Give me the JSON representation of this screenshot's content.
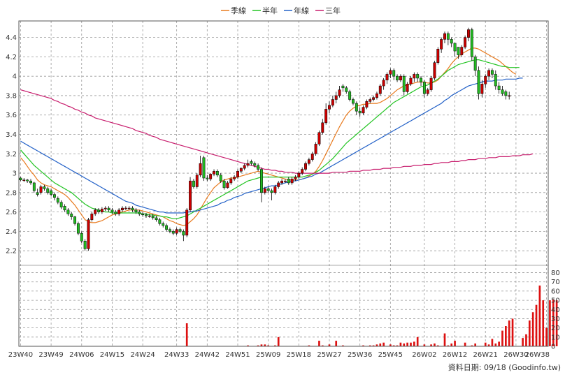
{
  "chart_data": {
    "type": "candlestick",
    "legend": [
      {
        "name": "季線",
        "color": "#e87a1e"
      },
      {
        "name": "半年",
        "color": "#22c422"
      },
      {
        "name": "年線",
        "color": "#2462c8"
      },
      {
        "name": "三年",
        "color": "#c81e6e"
      }
    ],
    "legend_position": "top-center",
    "grid": true,
    "colors": {
      "up": "#cc0000",
      "down": "#22bb22",
      "volume": "#dd1111",
      "grid": "#999999",
      "frame": "#555555"
    },
    "x_ticks": [
      "23W40",
      "23W49",
      "24W06",
      "24W15",
      "24W24",
      "24W33",
      "24W42",
      "24W51",
      "25W09",
      "25W18",
      "25W27",
      "25W36",
      "25W45",
      "26W02",
      "26W12",
      "26W21",
      "26W30",
      "26W38"
    ],
    "price_axis": {
      "ticks": [
        2.2,
        2.4,
        2.6,
        2.8,
        3,
        3.2,
        3.4,
        3.6,
        3.8,
        4,
        4.2,
        4.4
      ],
      "tick_labels": [
        "2.2",
        "2.4",
        "2.6",
        "2.8",
        "3",
        "3.2",
        "3.4",
        "3.6",
        "3.8",
        "4",
        "4.2",
        "4.4"
      ],
      "range": [
        2.05,
        4.57
      ]
    },
    "volume_axis": {
      "ticks": [
        0,
        10,
        20,
        30,
        40,
        50,
        60,
        70,
        80
      ],
      "tick_labels": [
        "0",
        "10",
        "20",
        "30",
        "40",
        "50",
        "60",
        "70",
        "80"
      ],
      "range": [
        0,
        88
      ]
    },
    "weeks": 156,
    "candles_close": [
      2.93,
      2.93,
      2.92,
      2.9,
      2.82,
      2.78,
      2.86,
      2.84,
      2.8,
      2.78,
      2.75,
      2.7,
      2.65,
      2.62,
      2.58,
      2.55,
      2.48,
      2.38,
      2.3,
      2.22,
      2.52,
      2.58,
      2.62,
      2.6,
      2.63,
      2.64,
      2.62,
      2.6,
      2.58,
      2.62,
      2.64,
      2.64,
      2.64,
      2.62,
      2.6,
      2.58,
      2.57,
      2.56,
      2.56,
      2.54,
      2.52,
      2.48,
      2.46,
      2.42,
      2.4,
      2.38,
      2.42,
      2.4,
      2.36,
      2.62,
      2.92,
      2.86,
      2.98,
      3.1,
      2.95,
      2.94,
      2.99,
      3.02,
      2.98,
      2.92,
      2.85,
      2.9,
      2.94,
      2.96,
      3.02,
      3.05,
      3.08,
      3.1,
      3.1,
      3.08,
      3.04,
      2.8,
      2.84,
      2.82,
      2.8,
      2.86,
      2.9,
      2.92,
      2.92,
      2.9,
      2.94,
      2.96,
      3,
      3.04,
      3.1,
      3.14,
      3.2,
      3.3,
      3.42,
      3.52,
      3.66,
      3.7,
      3.76,
      3.8,
      3.86,
      3.88,
      3.84,
      3.76,
      3.72,
      3.64,
      3.62,
      3.68,
      3.74,
      3.76,
      3.78,
      3.82,
      3.9,
      3.96,
      4.02,
      4.06,
      4,
      3.96,
      4,
      3.84,
      3.92,
      3.98,
      4.02,
      3.98,
      3.94,
      3.82,
      3.86,
      3.98,
      4.14,
      4.28,
      4.38,
      4.44,
      4.38,
      4.34,
      4.26,
      4.22,
      4.3,
      4.4,
      4.48,
      4.2,
      4.06,
      3.82,
      3.92,
      4,
      4.06,
      4.02,
      3.9,
      3.86,
      3.82,
      3.8,
      3.8
    ],
    "candles_open": [
      2.95,
      2.93,
      2.93,
      2.92,
      2.9,
      2.8,
      2.8,
      2.86,
      2.84,
      2.82,
      2.78,
      2.74,
      2.7,
      2.66,
      2.62,
      2.58,
      2.55,
      2.48,
      2.38,
      2.3,
      2.22,
      2.52,
      2.58,
      2.62,
      2.6,
      2.63,
      2.64,
      2.62,
      2.6,
      2.58,
      2.62,
      2.64,
      2.64,
      2.64,
      2.62,
      2.6,
      2.58,
      2.57,
      2.56,
      2.56,
      2.54,
      2.52,
      2.48,
      2.46,
      2.42,
      2.4,
      2.38,
      2.42,
      2.4,
      2.36,
      2.62,
      2.92,
      2.86,
      2.98,
      3.16,
      2.95,
      2.94,
      2.99,
      3.02,
      2.98,
      2.92,
      2.85,
      2.9,
      2.94,
      2.96,
      3.02,
      3.05,
      3.08,
      3.12,
      3.1,
      3.08,
      3.04,
      2.8,
      2.84,
      2.82,
      2.8,
      2.86,
      2.9,
      2.92,
      2.94,
      2.9,
      2.94,
      2.96,
      3,
      3.04,
      3.1,
      3.14,
      3.2,
      3.3,
      3.42,
      3.52,
      3.66,
      3.7,
      3.76,
      3.8,
      3.9,
      3.88,
      3.84,
      3.76,
      3.72,
      3.64,
      3.62,
      3.68,
      3.74,
      3.76,
      3.78,
      3.82,
      3.9,
      3.96,
      4.02,
      4.06,
      4,
      3.96,
      4,
      3.84,
      3.92,
      3.98,
      4.02,
      3.98,
      3.94,
      3.82,
      3.86,
      3.98,
      4.14,
      4.28,
      4.38,
      4.44,
      4.38,
      4.34,
      4.3,
      4.22,
      4.3,
      4.4,
      4.48,
      4.2,
      4.06,
      3.82,
      3.92,
      4,
      4.06,
      4.02,
      3.9,
      3.86,
      3.84,
      3.8
    ],
    "candles_high": [
      2.96,
      2.95,
      2.94,
      2.94,
      2.91,
      2.84,
      2.88,
      2.88,
      2.86,
      2.84,
      2.8,
      2.76,
      2.72,
      2.68,
      2.64,
      2.6,
      2.56,
      2.5,
      2.4,
      2.32,
      2.54,
      2.6,
      2.64,
      2.64,
      2.65,
      2.66,
      2.66,
      2.64,
      2.62,
      2.64,
      2.66,
      2.66,
      2.66,
      2.66,
      2.64,
      2.62,
      2.6,
      2.59,
      2.58,
      2.58,
      2.56,
      2.54,
      2.5,
      2.48,
      2.44,
      2.42,
      2.44,
      2.44,
      2.42,
      2.64,
      2.96,
      2.94,
      3,
      3.18,
      3.18,
      2.98,
      3,
      3.04,
      3.04,
      3,
      2.94,
      2.92,
      2.96,
      2.98,
      3.04,
      3.06,
      3.1,
      3.14,
      3.14,
      3.12,
      3.1,
      3.06,
      2.86,
      2.86,
      2.84,
      2.88,
      2.92,
      2.94,
      2.94,
      2.96,
      2.96,
      2.98,
      3.02,
      3.06,
      3.12,
      3.16,
      3.22,
      3.32,
      3.44,
      3.56,
      3.72,
      3.74,
      3.8,
      3.84,
      3.9,
      3.92,
      3.9,
      3.86,
      3.78,
      3.74,
      3.68,
      3.7,
      3.76,
      3.78,
      3.8,
      3.84,
      3.92,
      3.98,
      4.04,
      4.08,
      4.08,
      4.02,
      4.02,
      4.02,
      3.94,
      4,
      4.04,
      4.04,
      4,
      3.96,
      3.88,
      4,
      4.16,
      4.3,
      4.4,
      4.46,
      4.46,
      4.4,
      4.34,
      4.28,
      4.32,
      4.42,
      4.5,
      4.5,
      4.22,
      4.1,
      3.96,
      4.02,
      4.08,
      4.08,
      4.06,
      3.94,
      3.9,
      3.86,
      3.84
    ],
    "candles_low": [
      2.92,
      2.91,
      2.9,
      2.88,
      2.8,
      2.76,
      2.78,
      2.82,
      2.78,
      2.76,
      2.72,
      2.68,
      2.63,
      2.6,
      2.56,
      2.52,
      2.46,
      2.36,
      2.28,
      2.2,
      2.2,
      2.5,
      2.56,
      2.58,
      2.58,
      2.61,
      2.6,
      2.58,
      2.56,
      2.56,
      2.6,
      2.62,
      2.62,
      2.6,
      2.58,
      2.56,
      2.55,
      2.54,
      2.54,
      2.52,
      2.5,
      2.46,
      2.44,
      2.4,
      2.38,
      2.36,
      2.36,
      2.38,
      2.3,
      2.34,
      2.6,
      2.84,
      2.84,
      2.96,
      2.92,
      2.92,
      2.92,
      2.97,
      2.96,
      2.9,
      2.83,
      2.84,
      2.88,
      2.92,
      2.94,
      3,
      3.03,
      3.06,
      3.08,
      3.06,
      3.02,
      2.7,
      2.78,
      2.8,
      2.72,
      2.78,
      2.84,
      2.88,
      2.9,
      2.88,
      2.88,
      2.92,
      2.94,
      2.98,
      3.02,
      3.08,
      3.12,
      3.18,
      3.28,
      3.4,
      3.5,
      3.62,
      3.68,
      3.72,
      3.78,
      3.84,
      3.82,
      3.74,
      3.7,
      3.6,
      3.58,
      3.6,
      3.66,
      3.72,
      3.74,
      3.76,
      3.8,
      3.86,
      3.92,
      3.98,
      3.96,
      3.94,
      3.94,
      3.8,
      3.82,
      3.9,
      3.94,
      3.94,
      3.9,
      3.78,
      3.8,
      3.84,
      3.96,
      4.12,
      4.24,
      4.34,
      4.32,
      4.3,
      4.2,
      4.18,
      4.2,
      4.28,
      4.36,
      4.16,
      4,
      3.76,
      3.78,
      3.88,
      3.96,
      3.98,
      3.86,
      3.82,
      3.8,
      3.76,
      3.76
    ],
    "volume": [
      0,
      0,
      0,
      0,
      0,
      0,
      0,
      0,
      0,
      0,
      0,
      0,
      0,
      0,
      0,
      0,
      0,
      0,
      0,
      0,
      0,
      0,
      0,
      0,
      0,
      0,
      0,
      0,
      0,
      0,
      0,
      0,
      0,
      0,
      0,
      0,
      0,
      0,
      0,
      0,
      0,
      0,
      0,
      0,
      0,
      0,
      0,
      0,
      0,
      25,
      0,
      0,
      0,
      0,
      0,
      0,
      0,
      0,
      0,
      0,
      0,
      0,
      0,
      0,
      0,
      0,
      0,
      1,
      0,
      0,
      1,
      2,
      2,
      1,
      0,
      1,
      10,
      0,
      0,
      0,
      0,
      0,
      0,
      0,
      0,
      1,
      0,
      0,
      6,
      1,
      0,
      2,
      0,
      6,
      0,
      1,
      0,
      0,
      0,
      0,
      0,
      1,
      0,
      1,
      1,
      2,
      3,
      4,
      0,
      2,
      1,
      1,
      4,
      3,
      4,
      4,
      5,
      10,
      0,
      2,
      0,
      2,
      3,
      1,
      0,
      14,
      1,
      3,
      6,
      0,
      0,
      4,
      0,
      1,
      3,
      0,
      0,
      4,
      2,
      8,
      3,
      5,
      17,
      22,
      28,
      30,
      0,
      0,
      9,
      13,
      28,
      37,
      45,
      66,
      50,
      20,
      50,
      51,
      50
    ],
    "ma_quarter": [
      3.16,
      3.12,
      3.07,
      3.02,
      2.98,
      2.93,
      2.9,
      2.88,
      2.87,
      2.86,
      2.84,
      2.82,
      2.8,
      2.78,
      2.75,
      2.71,
      2.67,
      2.62,
      2.57,
      2.52,
      2.5,
      2.49,
      2.49,
      2.5,
      2.51,
      2.53,
      2.55,
      2.57,
      2.58,
      2.59,
      2.6,
      2.61,
      2.62,
      2.62,
      2.62,
      2.62,
      2.61,
      2.6,
      2.59,
      2.58,
      2.57,
      2.56,
      2.55,
      2.53,
      2.51,
      2.5,
      2.48,
      2.47,
      2.46,
      2.47,
      2.5,
      2.53,
      2.57,
      2.63,
      2.69,
      2.75,
      2.8,
      2.85,
      2.88,
      2.91,
      2.93,
      2.94,
      2.95,
      2.95,
      2.96,
      2.97,
      2.98,
      2.99,
      3,
      3.01,
      3.02,
      3.01,
      3,
      2.99,
      2.98,
      2.97,
      2.96,
      2.95,
      2.94,
      2.93,
      2.93,
      2.93,
      2.93,
      2.94,
      2.95,
      2.97,
      2.99,
      3.02,
      3.07,
      3.13,
      3.2,
      3.27,
      3.34,
      3.41,
      3.48,
      3.54,
      3.6,
      3.64,
      3.67,
      3.69,
      3.7,
      3.71,
      3.71,
      3.72,
      3.72,
      3.72,
      3.73,
      3.75,
      3.77,
      3.8,
      3.83,
      3.86,
      3.88,
      3.9,
      3.91,
      3.92,
      3.93,
      3.94,
      3.94,
      3.94,
      3.93,
      3.93,
      3.94,
      3.96,
      4,
      4.04,
      4.08,
      4.13,
      4.17,
      4.2,
      4.23,
      4.25,
      4.27,
      4.29,
      4.29,
      4.28,
      4.26,
      4.24,
      4.22,
      4.2,
      4.18,
      4.16,
      4.13,
      4.1,
      4.07,
      4.04,
      4.02
    ],
    "ma_half": [
      3.24,
      3.2,
      3.16,
      3.12,
      3.08,
      3.05,
      3.02,
      2.99,
      2.96,
      2.93,
      2.9,
      2.88,
      2.86,
      2.84,
      2.82,
      2.8,
      2.77,
      2.74,
      2.71,
      2.68,
      2.66,
      2.64,
      2.63,
      2.62,
      2.61,
      2.6,
      2.6,
      2.59,
      2.59,
      2.59,
      2.59,
      2.59,
      2.59,
      2.59,
      2.59,
      2.59,
      2.58,
      2.58,
      2.57,
      2.57,
      2.56,
      2.56,
      2.55,
      2.55,
      2.54,
      2.53,
      2.53,
      2.54,
      2.55,
      2.56,
      2.58,
      2.6,
      2.62,
      2.64,
      2.66,
      2.68,
      2.7,
      2.72,
      2.74,
      2.76,
      2.78,
      2.8,
      2.82,
      2.84,
      2.86,
      2.88,
      2.9,
      2.92,
      2.93,
      2.94,
      2.95,
      2.96,
      2.96,
      2.96,
      2.96,
      2.96,
      2.96,
      2.96,
      2.96,
      2.96,
      2.96,
      2.96,
      2.96,
      2.96,
      2.97,
      2.98,
      2.99,
      3.01,
      3.03,
      3.06,
      3.09,
      3.12,
      3.15,
      3.19,
      3.23,
      3.27,
      3.31,
      3.34,
      3.37,
      3.4,
      3.43,
      3.46,
      3.49,
      3.52,
      3.55,
      3.58,
      3.61,
      3.64,
      3.67,
      3.7,
      3.73,
      3.75,
      3.77,
      3.79,
      3.81,
      3.83,
      3.85,
      3.87,
      3.89,
      3.9,
      3.91,
      3.93,
      3.95,
      3.97,
      4,
      4.03,
      4.06,
      4.08,
      4.1,
      4.12,
      4.13,
      4.14,
      4.15,
      4.16,
      4.17,
      4.17,
      4.16,
      4.15,
      4.14,
      4.13,
      4.12,
      4.11,
      4.1,
      4.1,
      4.09,
      4.09,
      4.09,
      4.09
    ],
    "ma_year": [
      3.33,
      3.31,
      3.29,
      3.27,
      3.25,
      3.23,
      3.21,
      3.19,
      3.17,
      3.15,
      3.13,
      3.11,
      3.09,
      3.07,
      3.05,
      3.03,
      3.01,
      2.99,
      2.97,
      2.95,
      2.93,
      2.91,
      2.89,
      2.87,
      2.85,
      2.83,
      2.81,
      2.79,
      2.77,
      2.75,
      2.73,
      2.71,
      2.7,
      2.69,
      2.67,
      2.66,
      2.65,
      2.64,
      2.63,
      2.62,
      2.61,
      2.6,
      2.6,
      2.59,
      2.59,
      2.59,
      2.59,
      2.59,
      2.59,
      2.6,
      2.6,
      2.61,
      2.61,
      2.62,
      2.63,
      2.64,
      2.65,
      2.66,
      2.67,
      2.69,
      2.7,
      2.72,
      2.73,
      2.75,
      2.76,
      2.77,
      2.79,
      2.8,
      2.81,
      2.82,
      2.83,
      2.84,
      2.85,
      2.86,
      2.87,
      2.87,
      2.88,
      2.89,
      2.9,
      2.91,
      2.92,
      2.92,
      2.93,
      2.94,
      2.95,
      2.96,
      2.97,
      2.99,
      3,
      3.02,
      3.04,
      3.06,
      3.08,
      3.1,
      3.12,
      3.14,
      3.16,
      3.18,
      3.2,
      3.22,
      3.24,
      3.26,
      3.28,
      3.3,
      3.32,
      3.34,
      3.36,
      3.38,
      3.4,
      3.42,
      3.44,
      3.46,
      3.48,
      3.5,
      3.52,
      3.54,
      3.56,
      3.58,
      3.6,
      3.62,
      3.64,
      3.66,
      3.68,
      3.7,
      3.72,
      3.75,
      3.77,
      3.8,
      3.82,
      3.84,
      3.86,
      3.88,
      3.9,
      3.91,
      3.92,
      3.93,
      3.94,
      3.95,
      3.95,
      3.95,
      3.96,
      3.96,
      3.96,
      3.97,
      3.97,
      3.97,
      3.97,
      3.98,
      3.98
    ],
    "ma_3yr": [
      3.86,
      3.85,
      3.84,
      3.83,
      3.82,
      3.81,
      3.8,
      3.79,
      3.78,
      3.77,
      3.75,
      3.74,
      3.72,
      3.71,
      3.69,
      3.68,
      3.66,
      3.65,
      3.63,
      3.62,
      3.6,
      3.59,
      3.57,
      3.56,
      3.55,
      3.54,
      3.53,
      3.52,
      3.51,
      3.5,
      3.49,
      3.48,
      3.47,
      3.46,
      3.44,
      3.43,
      3.42,
      3.41,
      3.39,
      3.38,
      3.37,
      3.35,
      3.34,
      3.33,
      3.32,
      3.31,
      3.3,
      3.29,
      3.28,
      3.27,
      3.26,
      3.25,
      3.24,
      3.23,
      3.22,
      3.21,
      3.2,
      3.19,
      3.18,
      3.17,
      3.16,
      3.15,
      3.14,
      3.13,
      3.12,
      3.11,
      3.1,
      3.09,
      3.08,
      3.07,
      3.06,
      3.05,
      3.04,
      3.04,
      3.03,
      3.03,
      3.02,
      3.02,
      3.01,
      3.01,
      3.01,
      3,
      3,
      3,
      3,
      3,
      3,
      3,
      3,
      3,
      3,
      3,
      3.01,
      3.01,
      3.01,
      3.01,
      3.01,
      3.02,
      3.02,
      3.02,
      3.02,
      3.03,
      3.03,
      3.03,
      3.04,
      3.04,
      3.04,
      3.05,
      3.05,
      3.05,
      3.06,
      3.06,
      3.06,
      3.07,
      3.07,
      3.07,
      3.08,
      3.08,
      3.08,
      3.09,
      3.09,
      3.09,
      3.1,
      3.1,
      3.11,
      3.11,
      3.11,
      3.12,
      3.12,
      3.12,
      3.13,
      3.13,
      3.14,
      3.14,
      3.14,
      3.15,
      3.15,
      3.15,
      3.16,
      3.16,
      3.16,
      3.17,
      3.17,
      3.17,
      3.17,
      3.18,
      3.18,
      3.18,
      3.19,
      3.19,
      3.19,
      3.2
    ]
  },
  "source_label": "資料日期: 09/18",
  "site_label": "(Goodinfo.tw)"
}
